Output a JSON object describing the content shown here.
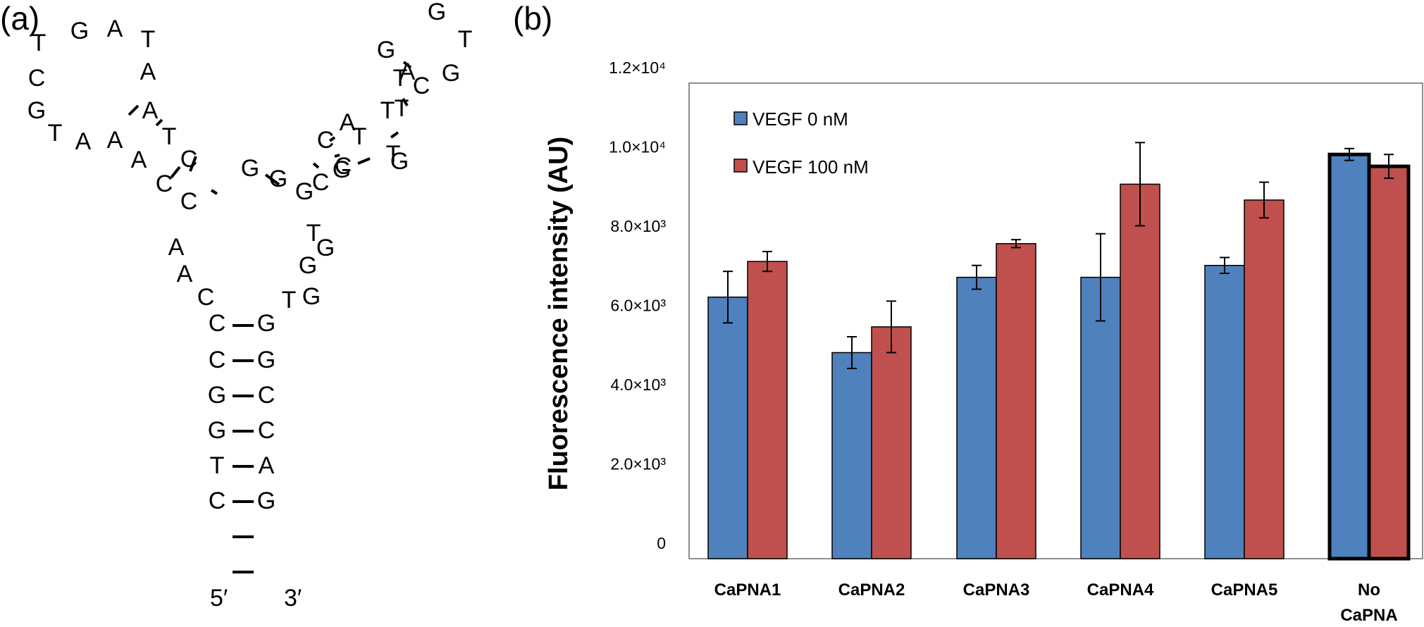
{
  "panels": {
    "a_label": "(a)",
    "b_label": "(b)"
  },
  "structure": {
    "bases": [
      "T",
      "G",
      "A",
      "T",
      "A",
      "C",
      "G",
      "T",
      "A",
      "A",
      "A",
      "T",
      "A",
      "C",
      "C",
      "C",
      "G",
      "C",
      "C",
      "G",
      "G",
      "G",
      "A",
      "A",
      "C",
      "T",
      "G",
      "G",
      "T",
      "G",
      "C",
      "G",
      "T",
      "T",
      "T",
      "A",
      "G",
      "T",
      "G",
      "T",
      "G",
      "C",
      "A",
      "T",
      "C",
      "G",
      "C",
      "G",
      "G",
      "C",
      "G",
      "C",
      "T",
      "A",
      "C",
      "G"
    ],
    "five_prime": "5′",
    "three_prime": "3′"
  },
  "legend": {
    "series0": "VEGF 0 nM",
    "series1": "VEGF 100 nM"
  },
  "colors": {
    "series0": "#4F81BD",
    "series1": "#C0504D",
    "axis": "#8E8E8E"
  },
  "chart_data": {
    "type": "bar",
    "categories": [
      "CaPNA1",
      "CaPNA2",
      "CaPNA3",
      "CaPNA4",
      "CaPNA5",
      "No CaPNA"
    ],
    "category_lines": [
      [
        "CaPNA1"
      ],
      [
        "CaPNA2"
      ],
      [
        "CaPNA3"
      ],
      [
        "CaPNA4"
      ],
      [
        "CaPNA5"
      ],
      [
        "No",
        "CaPNA"
      ]
    ],
    "series": [
      {
        "name": "VEGF 0 nM",
        "values": [
          6600,
          5200,
          7100,
          7100,
          7400,
          10200
        ],
        "errors": [
          650,
          400,
          300,
          1100,
          200,
          150
        ]
      },
      {
        "name": "VEGF 100 nM",
        "values": [
          7500,
          5850,
          7950,
          9450,
          9050,
          9900
        ],
        "errors": [
          250,
          650,
          100,
          1050,
          450,
          300
        ]
      }
    ],
    "highlighted_category": "No CaPNA",
    "ylabel": "Fluorescence intensity (AU)",
    "xlabel": "",
    "ylim": [
      0,
      12000
    ],
    "yticks": [
      {
        "value": 0,
        "label": "0"
      },
      {
        "value": 2000,
        "label": "2.0×10³"
      },
      {
        "value": 4000,
        "label": "4.0×10³"
      },
      {
        "value": 6000,
        "label": "6.0×10³"
      },
      {
        "value": 8000,
        "label": "8.0×10³"
      },
      {
        "value": 10000,
        "label": "1.0×10⁴"
      },
      {
        "value": 12000,
        "label": "1.2×10⁴"
      }
    ],
    "legend_position": "top-left",
    "grid": false
  }
}
